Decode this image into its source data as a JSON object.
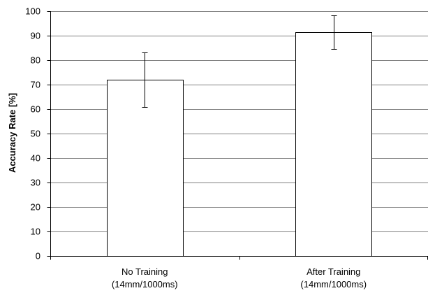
{
  "chart_data": {
    "type": "bar",
    "title": "",
    "xlabel": "",
    "ylabel": "Accuracy Rate [%]",
    "ylim": [
      0,
      100
    ],
    "yticks": [
      0,
      10,
      20,
      30,
      40,
      50,
      60,
      70,
      80,
      90,
      100
    ],
    "grid": true,
    "legend": "none",
    "categories": [
      [
        "No Training",
        "(14mm/1000ms)"
      ],
      [
        "After Training",
        "(14mm/1000ms)"
      ]
    ],
    "values": [
      72,
      91.3
    ],
    "error_bars": [
      {
        "low": 60.8,
        "high": 83.2
      },
      {
        "low": 84.5,
        "high": 98.2
      }
    ],
    "colors": {
      "bar_fill": "#ffffff",
      "bar_stroke": "#000000",
      "grid": "#808080",
      "axis": "#000000"
    }
  }
}
